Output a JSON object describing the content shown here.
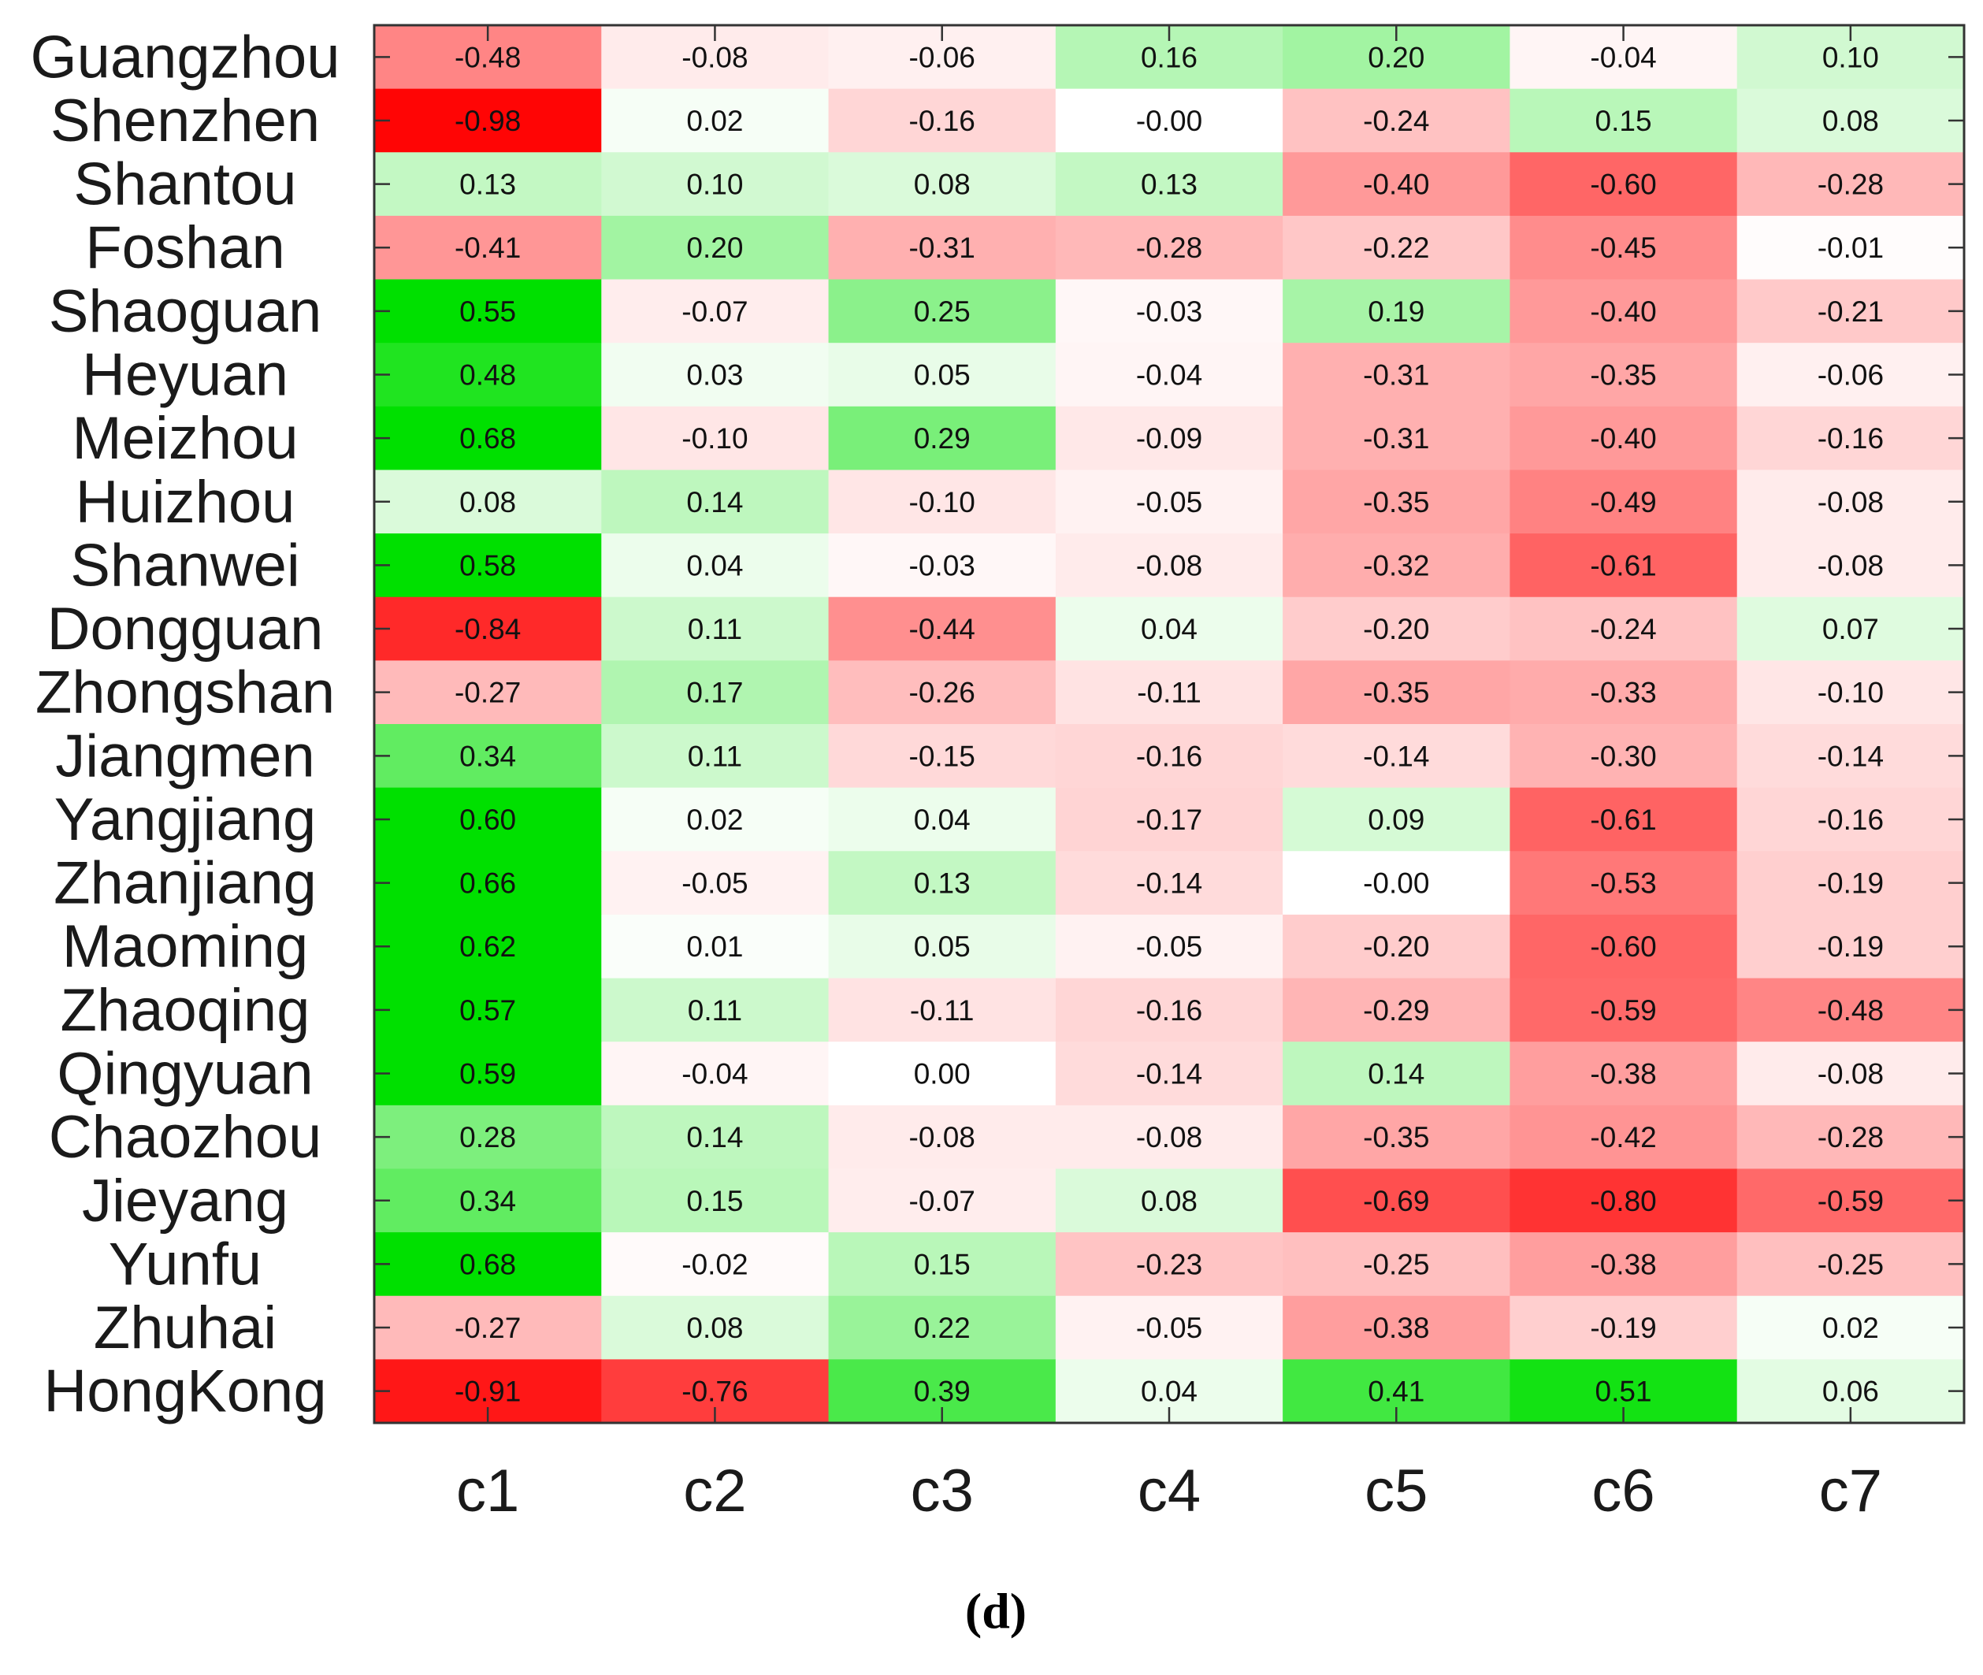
{
  "chart_data": {
    "type": "heatmap",
    "caption": "(d)",
    "columns": [
      "c1",
      "c2",
      "c3",
      "c4",
      "c5",
      "c6",
      "c7"
    ],
    "rows": [
      "Guangzhou",
      "Shenzhen",
      "Shantou",
      "Foshan",
      "Shaoguan",
      "Heyuan",
      "Meizhou",
      "Huizhou",
      "Shanwei",
      "Dongguan",
      "Zhongshan",
      "Jiangmen",
      "Yangjiang",
      "Zhanjiang",
      "Maoming",
      "Zhaoqing",
      "Qingyuan",
      "Chaozhou",
      "Jieyang",
      "Yunfu",
      "Zhuhai",
      "HongKong"
    ],
    "labels": [
      [
        "-0.48",
        "-0.08",
        "-0.06",
        "0.16",
        "0.20",
        "-0.04",
        "0.10"
      ],
      [
        "-0.98",
        "0.02",
        "-0.16",
        "-0.00",
        "-0.24",
        "0.15",
        "0.08"
      ],
      [
        "0.13",
        "0.10",
        "0.08",
        "0.13",
        "-0.40",
        "-0.60",
        "-0.28"
      ],
      [
        "-0.41",
        "0.20",
        "-0.31",
        "-0.28",
        "-0.22",
        "-0.45",
        "-0.01"
      ],
      [
        "0.55",
        "-0.07",
        "0.25",
        "-0.03",
        "0.19",
        "-0.40",
        "-0.21"
      ],
      [
        "0.48",
        "0.03",
        "0.05",
        "-0.04",
        "-0.31",
        "-0.35",
        "-0.06"
      ],
      [
        "0.68",
        "-0.10",
        "0.29",
        "-0.09",
        "-0.31",
        "-0.40",
        "-0.16"
      ],
      [
        "0.08",
        "0.14",
        "-0.10",
        "-0.05",
        "-0.35",
        "-0.49",
        "-0.08"
      ],
      [
        "0.58",
        "0.04",
        "-0.03",
        "-0.08",
        "-0.32",
        "-0.61",
        "-0.08"
      ],
      [
        "-0.84",
        "0.11",
        "-0.44",
        "0.04",
        "-0.20",
        "-0.24",
        "0.07"
      ],
      [
        "-0.27",
        "0.17",
        "-0.26",
        "-0.11",
        "-0.35",
        "-0.33",
        "-0.10"
      ],
      [
        "0.34",
        "0.11",
        "-0.15",
        "-0.16",
        "-0.14",
        "-0.30",
        "-0.14"
      ],
      [
        "0.60",
        "0.02",
        "0.04",
        "-0.17",
        "0.09",
        "-0.61",
        "-0.16"
      ],
      [
        "0.66",
        "-0.05",
        "0.13",
        "-0.14",
        "-0.00",
        "-0.53",
        "-0.19"
      ],
      [
        "0.62",
        "0.01",
        "0.05",
        "-0.05",
        "-0.20",
        "-0.60",
        "-0.19"
      ],
      [
        "0.57",
        "0.11",
        "-0.11",
        "-0.16",
        "-0.29",
        "-0.59",
        "-0.48"
      ],
      [
        "0.59",
        "-0.04",
        "0.00",
        "-0.14",
        "0.14",
        "-0.38",
        "-0.08"
      ],
      [
        "0.28",
        "0.14",
        "-0.08",
        "-0.08",
        "-0.35",
        "-0.42",
        "-0.28"
      ],
      [
        "0.34",
        "0.15",
        "-0.07",
        "0.08",
        "-0.69",
        "-0.80",
        "-0.59"
      ],
      [
        "0.68",
        "-0.02",
        "0.15",
        "-0.23",
        "-0.25",
        "-0.38",
        "-0.25"
      ],
      [
        "-0.27",
        "0.08",
        "0.22",
        "-0.05",
        "-0.38",
        "-0.19",
        "0.02"
      ],
      [
        "-0.91",
        "-0.76",
        "0.39",
        "0.04",
        "0.41",
        "0.51",
        "0.06"
      ]
    ],
    "color_positive": "#00e000",
    "color_negative": "#ff0000",
    "color_zero": "#ffffff",
    "color_scale_max": 0.55,
    "color_scale_min": -1.0
  }
}
